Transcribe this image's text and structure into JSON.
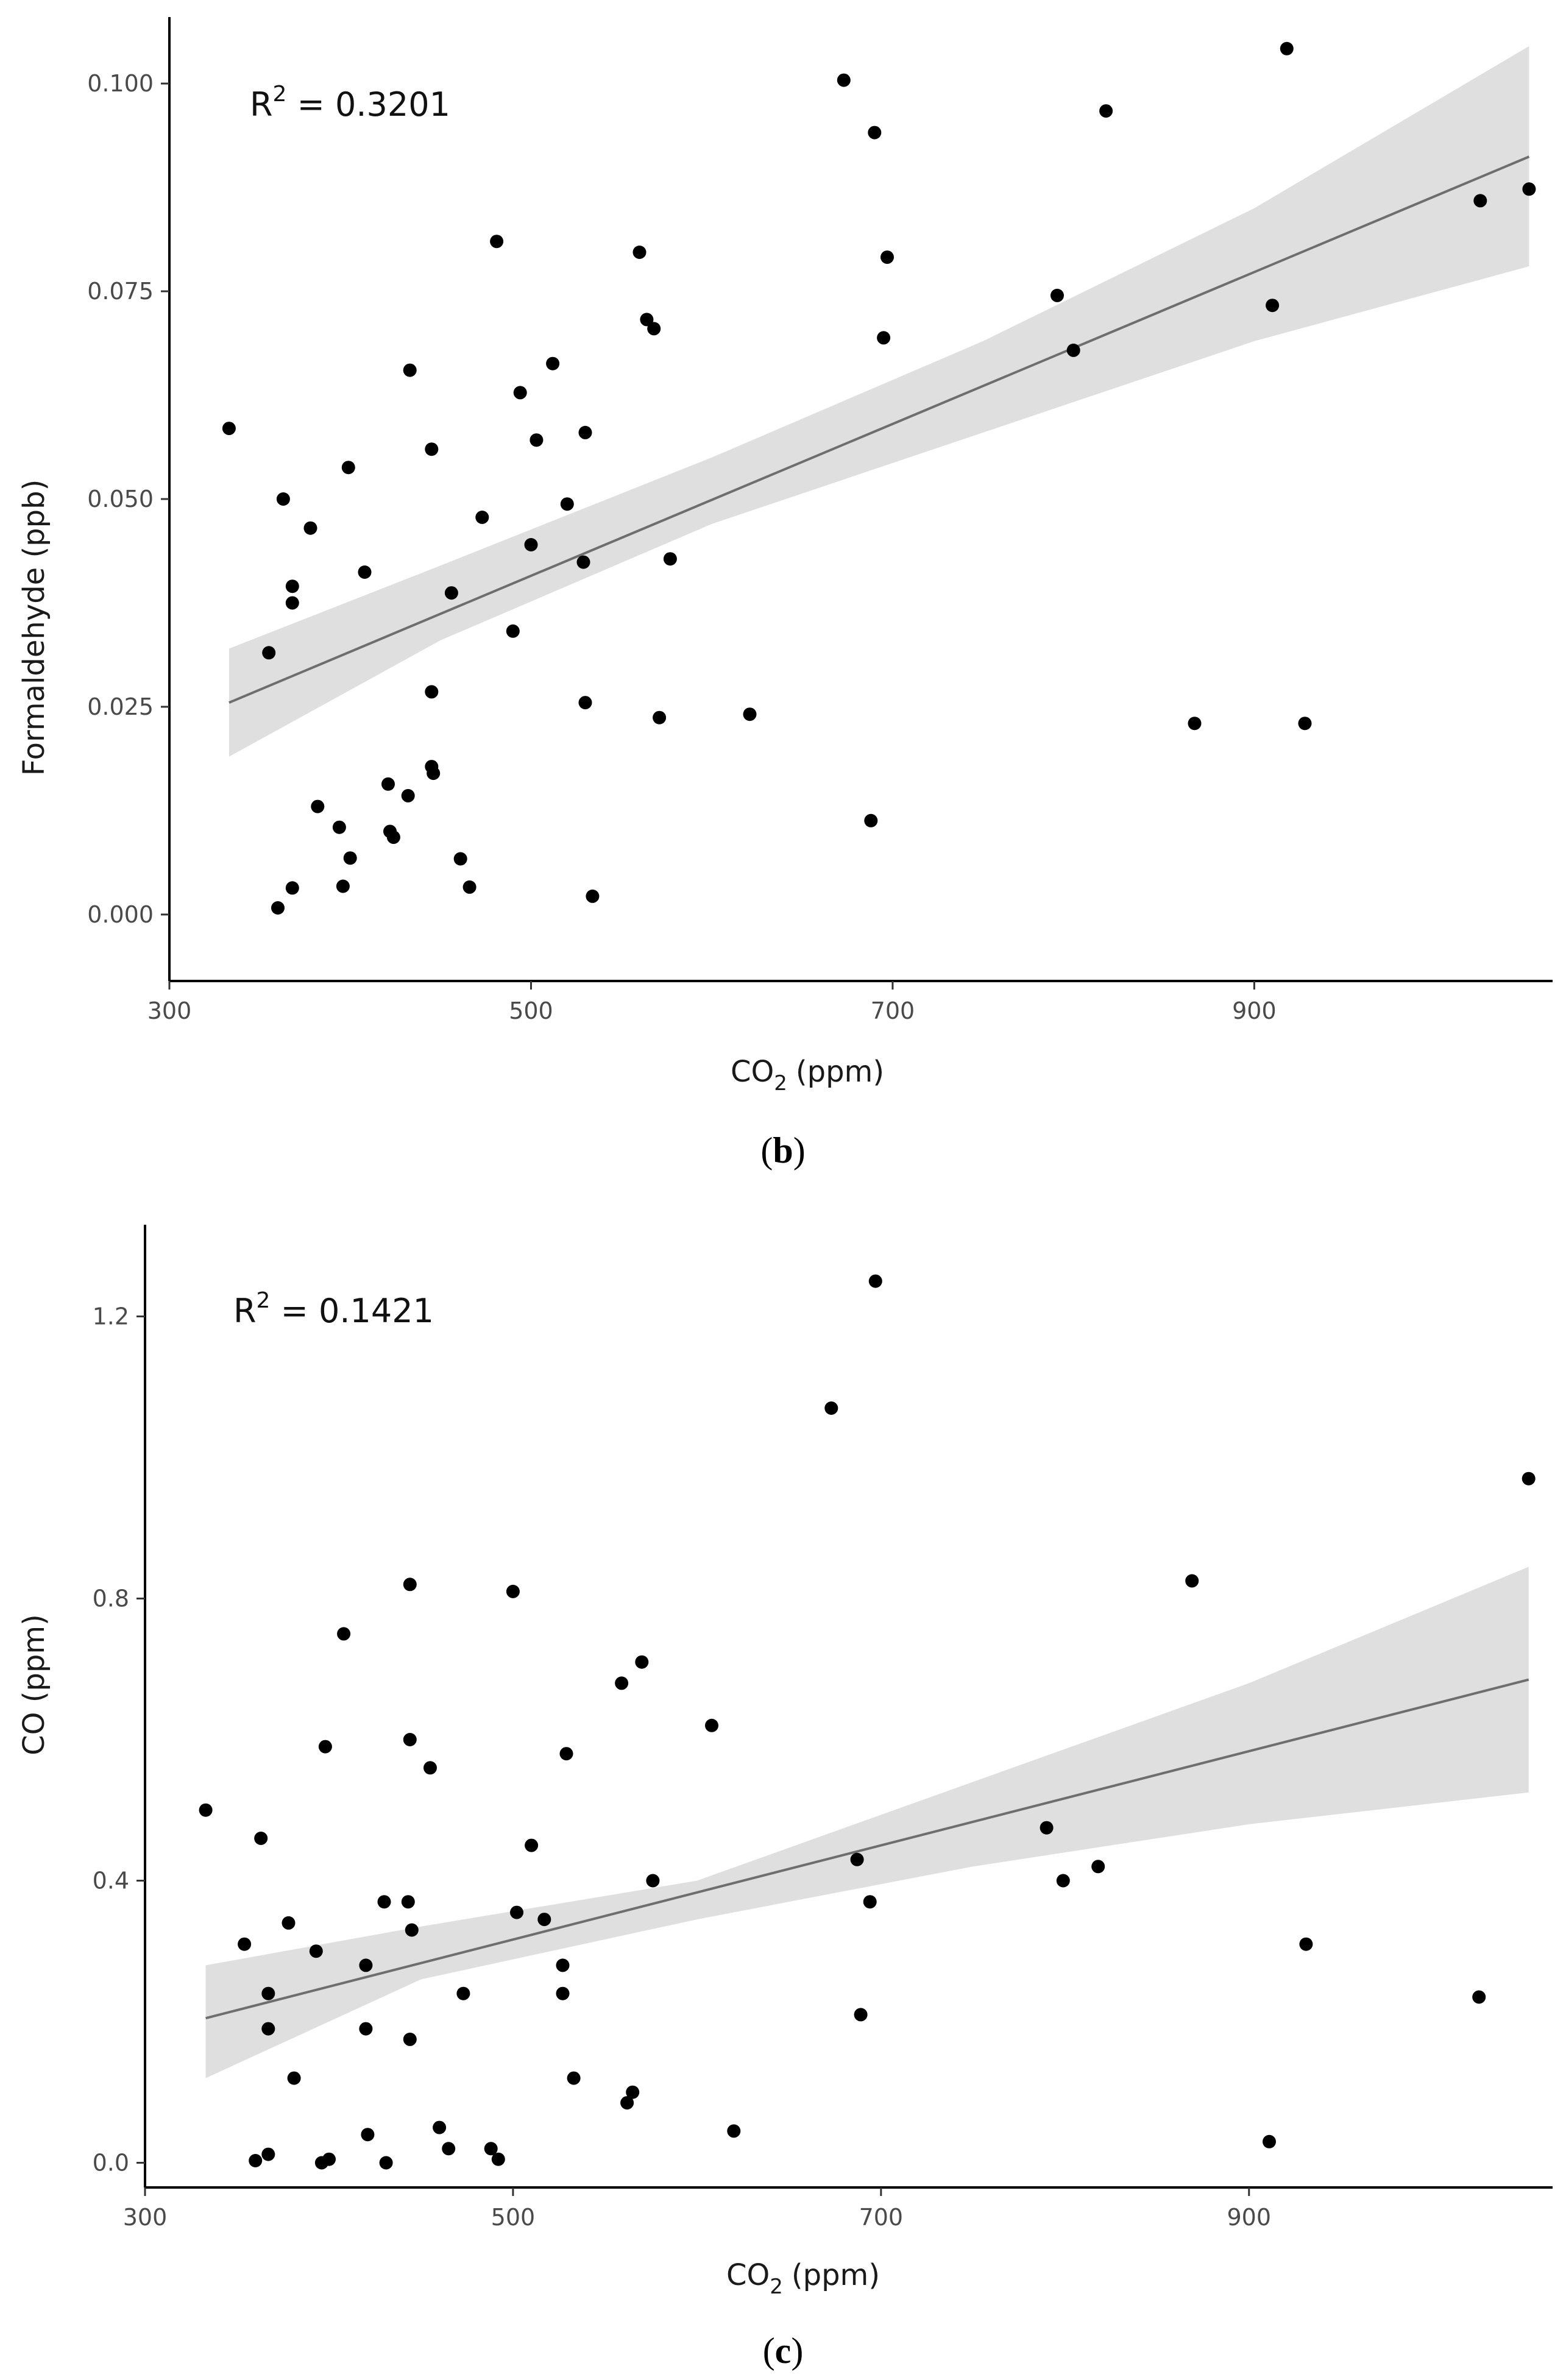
{
  "chart_data": [
    {
      "type": "scatter",
      "panel_label": "b",
      "annotation": {
        "base": "R",
        "sup": "2",
        "rest": " = 0.3201"
      },
      "xlabel": {
        "main": "CO",
        "sub": "2",
        "unit": "(ppm)"
      },
      "ylabel": "Formaldehyde  (ppb)",
      "xlim": [
        300,
        1065
      ],
      "ylim": [
        -0.008,
        0.108
      ],
      "xticks": [
        300,
        500,
        700,
        900
      ],
      "xtick_labels": [
        "300",
        "500",
        "700",
        "900"
      ],
      "yticks": [
        0.0,
        0.025,
        0.05,
        0.075,
        0.1
      ],
      "ytick_labels": [
        "0.000",
        "0.025",
        "0.050",
        "0.075",
        "0.100"
      ],
      "fit_line": {
        "x": [
          333,
          1052
        ],
        "y": [
          0.0255,
          0.0912
        ]
      },
      "confidence_band": {
        "x": [
          333,
          450,
          600,
          750,
          900,
          1052
        ],
        "lower": [
          0.019,
          0.033,
          0.047,
          0.058,
          0.069,
          0.078
        ],
        "upper": [
          0.032,
          0.042,
          0.055,
          0.069,
          0.085,
          0.1045
        ]
      },
      "points": [
        {
          "x": 333,
          "y": 0.0585
        },
        {
          "x": 355,
          "y": 0.0315
        },
        {
          "x": 360,
          "y": 0.0008
        },
        {
          "x": 363,
          "y": 0.05
        },
        {
          "x": 368,
          "y": 0.0395
        },
        {
          "x": 368,
          "y": 0.0375
        },
        {
          "x": 368,
          "y": 0.0032
        },
        {
          "x": 378,
          "y": 0.0465
        },
        {
          "x": 382,
          "y": 0.013
        },
        {
          "x": 394,
          "y": 0.0105
        },
        {
          "x": 396,
          "y": 0.0034
        },
        {
          "x": 399,
          "y": 0.0538
        },
        {
          "x": 400,
          "y": 0.0068
        },
        {
          "x": 408,
          "y": 0.0412
        },
        {
          "x": 421,
          "y": 0.0157
        },
        {
          "x": 422,
          "y": 0.01
        },
        {
          "x": 424,
          "y": 0.0093
        },
        {
          "x": 432,
          "y": 0.0143
        },
        {
          "x": 433,
          "y": 0.0655
        },
        {
          "x": 445,
          "y": 0.0268
        },
        {
          "x": 445,
          "y": 0.056
        },
        {
          "x": 445,
          "y": 0.0178
        },
        {
          "x": 446,
          "y": 0.017
        },
        {
          "x": 456,
          "y": 0.0387
        },
        {
          "x": 461,
          "y": 0.0067
        },
        {
          "x": 466,
          "y": 0.0033
        },
        {
          "x": 473,
          "y": 0.0478
        },
        {
          "x": 481,
          "y": 0.081
        },
        {
          "x": 490,
          "y": 0.0341
        },
        {
          "x": 494,
          "y": 0.0628
        },
        {
          "x": 500,
          "y": 0.0445
        },
        {
          "x": 503,
          "y": 0.0571
        },
        {
          "x": 512,
          "y": 0.0663
        },
        {
          "x": 520,
          "y": 0.0494
        },
        {
          "x": 529,
          "y": 0.0424
        },
        {
          "x": 530,
          "y": 0.058
        },
        {
          "x": 530,
          "y": 0.0255
        },
        {
          "x": 534,
          "y": 0.0022
        },
        {
          "x": 560,
          "y": 0.0797
        },
        {
          "x": 564,
          "y": 0.0716
        },
        {
          "x": 568,
          "y": 0.0705
        },
        {
          "x": 571,
          "y": 0.0237
        },
        {
          "x": 577,
          "y": 0.0428
        },
        {
          "x": 621,
          "y": 0.0241
        },
        {
          "x": 673,
          "y": 0.1004
        },
        {
          "x": 688,
          "y": 0.0113
        },
        {
          "x": 690,
          "y": 0.0941
        },
        {
          "x": 695,
          "y": 0.0694
        },
        {
          "x": 697,
          "y": 0.0791
        },
        {
          "x": 791,
          "y": 0.0745
        },
        {
          "x": 800,
          "y": 0.0679
        },
        {
          "x": 818,
          "y": 0.0967
        },
        {
          "x": 867,
          "y": 0.023
        },
        {
          "x": 910,
          "y": 0.0733
        },
        {
          "x": 918,
          "y": 0.1042
        },
        {
          "x": 928,
          "y": 0.023
        },
        {
          "x": 1025,
          "y": 0.0859
        },
        {
          "x": 1052,
          "y": 0.0873
        }
      ]
    },
    {
      "type": "scatter",
      "panel_label": "c",
      "annotation": {
        "base": "R",
        "sup": "2",
        "rest": " = 0.1421"
      },
      "xlabel": {
        "main": "CO",
        "sub": "2",
        "unit": "(ppm)"
      },
      "ylabel": "CO  (ppm)",
      "xlim": [
        300,
        1065
      ],
      "ylim": [
        -0.035,
        1.33
      ],
      "xticks": [
        300,
        500,
        700,
        900
      ],
      "xtick_labels": [
        "300",
        "500",
        "700",
        "900"
      ],
      "yticks": [
        0.0,
        0.4,
        0.8,
        1.2
      ],
      "ytick_labels": [
        "0.0",
        "0.4",
        "0.8",
        "1.2"
      ],
      "fit_line": {
        "x": [
          333,
          1052
        ],
        "y": [
          0.205,
          0.685
        ]
      },
      "confidence_band": {
        "x": [
          333,
          450,
          600,
          750,
          900,
          1052
        ],
        "lower": [
          0.12,
          0.26,
          0.345,
          0.42,
          0.48,
          0.525
        ],
        "upper": [
          0.28,
          0.335,
          0.4,
          0.54,
          0.68,
          0.845
        ]
      },
      "points": [
        {
          "x": 333,
          "y": 0.5
        },
        {
          "x": 354,
          "y": 0.31
        },
        {
          "x": 360,
          "y": 0.003
        },
        {
          "x": 363,
          "y": 0.46
        },
        {
          "x": 367,
          "y": 0.24
        },
        {
          "x": 367,
          "y": 0.19
        },
        {
          "x": 367,
          "y": 0.012
        },
        {
          "x": 378,
          "y": 0.34
        },
        {
          "x": 381,
          "y": 0.12
        },
        {
          "x": 393,
          "y": 0.3
        },
        {
          "x": 396,
          "y": 0.0
        },
        {
          "x": 398,
          "y": 0.59
        },
        {
          "x": 400,
          "y": 0.005
        },
        {
          "x": 408,
          "y": 0.75
        },
        {
          "x": 420,
          "y": 0.28
        },
        {
          "x": 420,
          "y": 0.19
        },
        {
          "x": 421,
          "y": 0.04
        },
        {
          "x": 430,
          "y": 0.37
        },
        {
          "x": 431,
          "y": 0.0
        },
        {
          "x": 443,
          "y": 0.37
        },
        {
          "x": 444,
          "y": 0.6
        },
        {
          "x": 444,
          "y": 0.82
        },
        {
          "x": 444,
          "y": 0.175
        },
        {
          "x": 445,
          "y": 0.33
        },
        {
          "x": 455,
          "y": 0.56
        },
        {
          "x": 460,
          "y": 0.05
        },
        {
          "x": 465,
          "y": 0.02
        },
        {
          "x": 473,
          "y": 0.24
        },
        {
          "x": 488,
          "y": 0.02
        },
        {
          "x": 492,
          "y": 0.005
        },
        {
          "x": 500,
          "y": 0.81
        },
        {
          "x": 502,
          "y": 0.355
        },
        {
          "x": 510,
          "y": 0.45
        },
        {
          "x": 517,
          "y": 0.345
        },
        {
          "x": 527,
          "y": 0.28
        },
        {
          "x": 527,
          "y": 0.24
        },
        {
          "x": 529,
          "y": 0.58
        },
        {
          "x": 533,
          "y": 0.12
        },
        {
          "x": 559,
          "y": 0.68
        },
        {
          "x": 562,
          "y": 0.085
        },
        {
          "x": 565,
          "y": 0.1
        },
        {
          "x": 570,
          "y": 0.71
        },
        {
          "x": 576,
          "y": 0.4
        },
        {
          "x": 608,
          "y": 0.62
        },
        {
          "x": 620,
          "y": 0.045
        },
        {
          "x": 673,
          "y": 1.07
        },
        {
          "x": 687,
          "y": 0.43
        },
        {
          "x": 689,
          "y": 0.21
        },
        {
          "x": 694,
          "y": 0.37
        },
        {
          "x": 697,
          "y": 1.25
        },
        {
          "x": 790,
          "y": 0.475
        },
        {
          "x": 799,
          "y": 0.4
        },
        {
          "x": 818,
          "y": 0.42
        },
        {
          "x": 869,
          "y": 0.825
        },
        {
          "x": 911,
          "y": 0.03
        },
        {
          "x": 931,
          "y": 0.31
        },
        {
          "x": 1025,
          "y": 0.235
        },
        {
          "x": 1052,
          "y": 0.97
        }
      ]
    }
  ]
}
